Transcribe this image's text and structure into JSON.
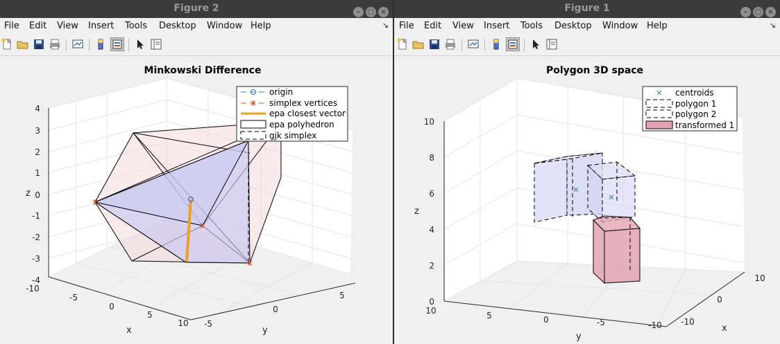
{
  "windows": [
    {
      "id": "left",
      "title": "Figure 2",
      "menus": [
        "File",
        "Edit",
        "View",
        "Insert",
        "Tools",
        "Desktop",
        "Window",
        "Help"
      ],
      "axes_title": "Minkowski Difference",
      "legend": [
        "origin",
        "simplex vertices",
        "epa closest vector",
        "epa polyhedron",
        "gjk simplex"
      ],
      "z_ticks": [
        "4",
        "3",
        "2",
        "1",
        "0",
        "-1",
        "-2",
        "-3",
        "-4"
      ],
      "x_ticks": [
        "-10",
        "-5",
        "0",
        "5",
        "10"
      ],
      "y_ticks": [
        "-5",
        "0",
        "5"
      ],
      "labels": {
        "x": "x",
        "y": "y",
        "z": "z"
      }
    },
    {
      "id": "right",
      "title": "Figure 1",
      "menus": [
        "File",
        "Edit",
        "View",
        "Insert",
        "Tools",
        "Desktop",
        "Window",
        "Help"
      ],
      "axes_title": "Polygon 3D space",
      "legend": [
        "centroids",
        "polygon 1",
        "polygon 2",
        "transformed 1"
      ],
      "z_ticks": [
        "10",
        "8",
        "6",
        "4",
        "2",
        "0"
      ],
      "x_ticks": [
        "10",
        "0",
        "-10"
      ],
      "y_ticks": [
        "10",
        "5",
        "0",
        "-5",
        "-10"
      ],
      "labels": {
        "x": "x",
        "y": "y",
        "z": "z"
      }
    }
  ],
  "colors": {
    "titlebar": "#3b3b3b",
    "title_text": "#9a9a9a",
    "epa_vector": "#f0a020",
    "origin_marker": "#2f7ab8",
    "simplex_marker": "#e0501a",
    "epa_fill": "#f4d9dd",
    "gjk_fill": "#c8c8f2",
    "transformed_fill": "#e3a3b0",
    "polygon_fill": "#dcdcf6"
  }
}
